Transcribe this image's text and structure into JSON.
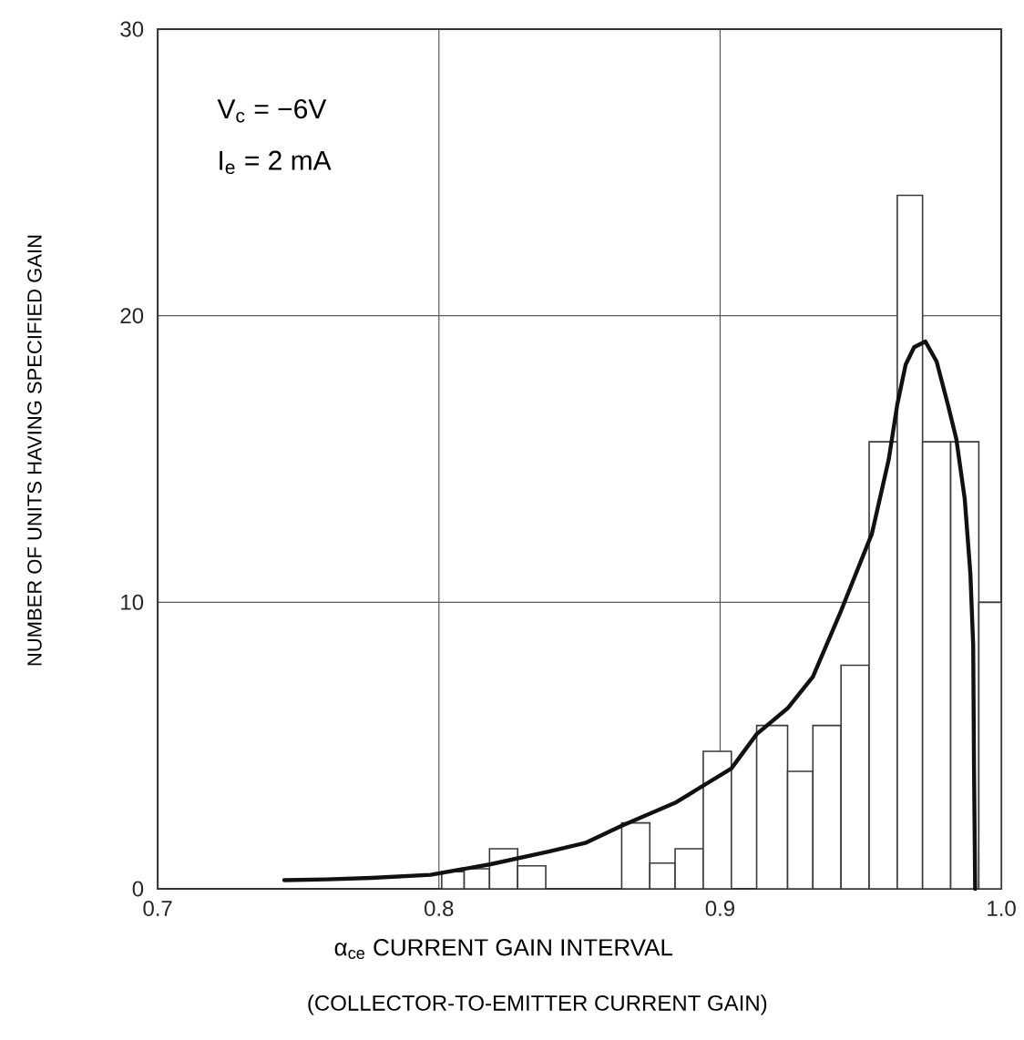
{
  "chart_data": {
    "type": "histogram",
    "xlabel": "α$_{ce}$ CURRENT GAIN INTERVAL",
    "ylabel": "NUMBER OF UNITS HAVING SPECIFIED GAIN",
    "annotations": [
      "V$_{c}$ = −6V",
      "I$_{e}$ = 2 mA",
      "(COLLECTOR-TO-EMITTER CURRENT GAIN)"
    ],
    "series": [
      {
        "color": "#3a3a3a",
        "bins": [
          0.801,
          0.809,
          0.818,
          0.828,
          0.838,
          0.865,
          0.875,
          0.884,
          0.894,
          0.904,
          0.913,
          0.924,
          0.933,
          0.943,
          0.953,
          0.963,
          0.972,
          0.982,
          0.992,
          1.0
        ],
        "values": [
          0.6,
          0.7,
          1.4,
          0.8,
          0,
          2.3,
          0.9,
          1.4,
          4.8,
          0,
          5.7,
          4.1,
          5.7,
          7.8,
          15.6,
          24.2,
          15.6,
          15.6,
          10
        ]
      },
      {
        "type": "line",
        "color": "#111111",
        "x": [
          0.745,
          0.76,
          0.776,
          0.797,
          0.818,
          0.839,
          0.852,
          0.865,
          0.884,
          0.904,
          0.913,
          0.924,
          0.933,
          0.943,
          0.954,
          0.96,
          0.963,
          0.966,
          0.969,
          0.973,
          0.977,
          0.981,
          0.984,
          0.987,
          0.989,
          0.99,
          0.9903,
          0.9907
        ],
        "values": [
          0.3,
          0.33,
          0.38,
          0.49,
          0.85,
          1.3,
          1.6,
          2.2,
          3.0,
          4.2,
          5.4,
          6.3,
          7.4,
          9.7,
          12.4,
          15.0,
          16.9,
          18.3,
          18.9,
          19.1,
          18.4,
          16.9,
          15.7,
          13.6,
          11.0,
          8.5,
          4.2,
          0
        ]
      }
    ],
    "xlim": [
      0.7,
      1.0
    ],
    "ylim": [
      0,
      30
    ],
    "xticks": [
      {
        "value": 0.7,
        "label": "0.7"
      },
      {
        "value": 0.8,
        "label": "0.8"
      },
      {
        "value": 0.9,
        "label": "0.9"
      },
      {
        "value": 1.0,
        "label": "1.0"
      }
    ],
    "yticks": [
      0,
      10,
      20,
      30
    ],
    "grid": true
  }
}
